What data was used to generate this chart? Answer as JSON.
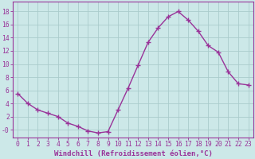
{
  "x": [
    0,
    1,
    2,
    3,
    4,
    5,
    6,
    7,
    8,
    9,
    10,
    11,
    12,
    13,
    14,
    15,
    16,
    17,
    18,
    19,
    20,
    21,
    22,
    23
  ],
  "y": [
    5.5,
    4.0,
    3.0,
    2.5,
    2.0,
    1.0,
    0.5,
    -0.2,
    -0.5,
    -0.3,
    3.0,
    6.3,
    9.8,
    13.3,
    15.5,
    17.2,
    18.0,
    16.7,
    15.0,
    12.8,
    11.8,
    8.8,
    7.0,
    6.8
  ],
  "line_color": "#993399",
  "marker": "+",
  "marker_size": 4,
  "bg_color": "#cce8e8",
  "grid_color": "#aacccc",
  "xlabel": "Windchill (Refroidissement éolien,°C)",
  "ylabel": "",
  "xlim": [
    -0.5,
    23.5
  ],
  "ylim": [
    -1.2,
    19.5
  ],
  "xticks": [
    0,
    1,
    2,
    3,
    4,
    5,
    6,
    7,
    8,
    9,
    10,
    11,
    12,
    13,
    14,
    15,
    16,
    17,
    18,
    19,
    20,
    21,
    22,
    23
  ],
  "yticks": [
    0,
    2,
    4,
    6,
    8,
    10,
    12,
    14,
    16,
    18
  ],
  "ytick_labels": [
    "-0",
    "2",
    "4",
    "6",
    "8",
    "10",
    "12",
    "14",
    "16",
    "18"
  ],
  "xlabel_fontsize": 6.5,
  "tick_fontsize": 5.8,
  "line_width": 1.0
}
